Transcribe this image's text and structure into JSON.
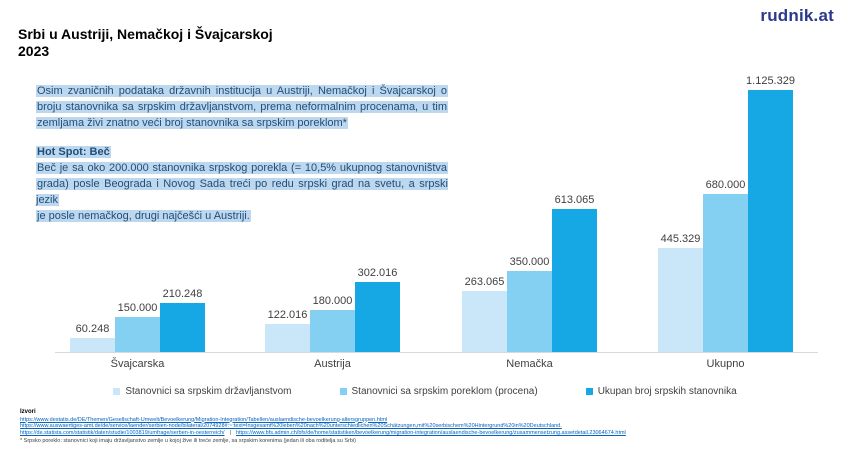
{
  "logo": {
    "text": "rudnik.at"
  },
  "title": {
    "line1": "Srbi u Austriji, Nemačkoj i Švajcarskoj",
    "line2": "2023"
  },
  "intro": {
    "lines": [
      "Osim zvaničnih podataka državnih institucija u Austriji, Nemačkoj i Švajcarskoj o",
      "broju stanovnika sa srpskim državljanstvom, prema neformalnim procenama, u tim",
      "zemljama živi znatno veći broj stanovnika sa srpskim poreklom*"
    ]
  },
  "hotspot": {
    "heading": "Hot Spot: Beč",
    "lines": [
      "Beč je sa oko 200.000 stanovnika srpskog porekla (= 10,5% ukupnog stanovništva",
      "grada) posle Beograda i Novog Sada treći po redu srpski grad na svetu, a srpski jezik",
      "je posle nemačkog, drugi najčešći u Austriji."
    ]
  },
  "chart_data": {
    "type": "bar",
    "title": "Srbi u Austriji, Nemačkoj i Švajcarskoj 2023",
    "categories": [
      "Švajcarska",
      "Austrija",
      "Nemačka",
      "Ukupno"
    ],
    "series": [
      {
        "name": "Stanovnici sa srpskim državljanstvom",
        "color": "#C9E7F8",
        "values": [
          60248,
          122016,
          263065,
          445329
        ],
        "labels": [
          "60.248",
          "122.016",
          "263.065",
          "445.329"
        ]
      },
      {
        "name": "Stanovnici sa srpskim poreklom (procena)",
        "color": "#84D0F2",
        "values": [
          150000,
          180000,
          350000,
          680000
        ],
        "labels": [
          "150.000",
          "180.000",
          "350.000",
          "680.000"
        ]
      },
      {
        "name": "Ukupan broj srpskih stanovnika",
        "color": "#15A8E5",
        "values": [
          210248,
          302016,
          613065,
          1125329
        ],
        "labels": [
          "210.248",
          "302.016",
          "613.065",
          "1.125.329"
        ]
      }
    ],
    "xlabel": "",
    "ylabel": "",
    "ylim": [
      0,
      1200000
    ],
    "grid": false,
    "legend_position": "bottom"
  },
  "footer": {
    "sources_heading": "Izvori",
    "separator": "|",
    "links": [
      "https://www.destatis.de/DE/Themen/Gesellschaft-Umwelt/Bevoelkerung/Migration-Integration/Tabellen/auslaendische-bevoelkerung-altersgruppen.html",
      "https://www.auswaertiges-amt.de/de/service/laender/serbien-node/bilateral/2074928#:~:text=Insgesamt%20leben%20nach%20unterschiedlichen%20Schätzungen,mit%20serbischem%20Hintergrund%20in%20Deutschland.",
      "https://de.statista.com/statistik/daten/studie/1003819/umfrage/serben-in-oesterreich/",
      "https://www.bfs.admin.ch/bfs/de/home/statistiken/bevoelkerung/migration-integration/auslaendische-bevoelkerung/zusammensetzung.assetdetail.23064674.html"
    ],
    "footnote": "* Srpsko poreklo: stanovnici koji imaju državljanstvo zemlje u kojoj žive ili treće zemlje, sa srpskim korenima (jedan ili oba roditelja su Srbi)"
  },
  "colors": {
    "highlight_bg": "#BDD7EE",
    "text_blue": "#1F4E79",
    "link_blue": "#0563C1",
    "logo_blue": "#2B3990",
    "axis_line": "#D9D9D9"
  }
}
